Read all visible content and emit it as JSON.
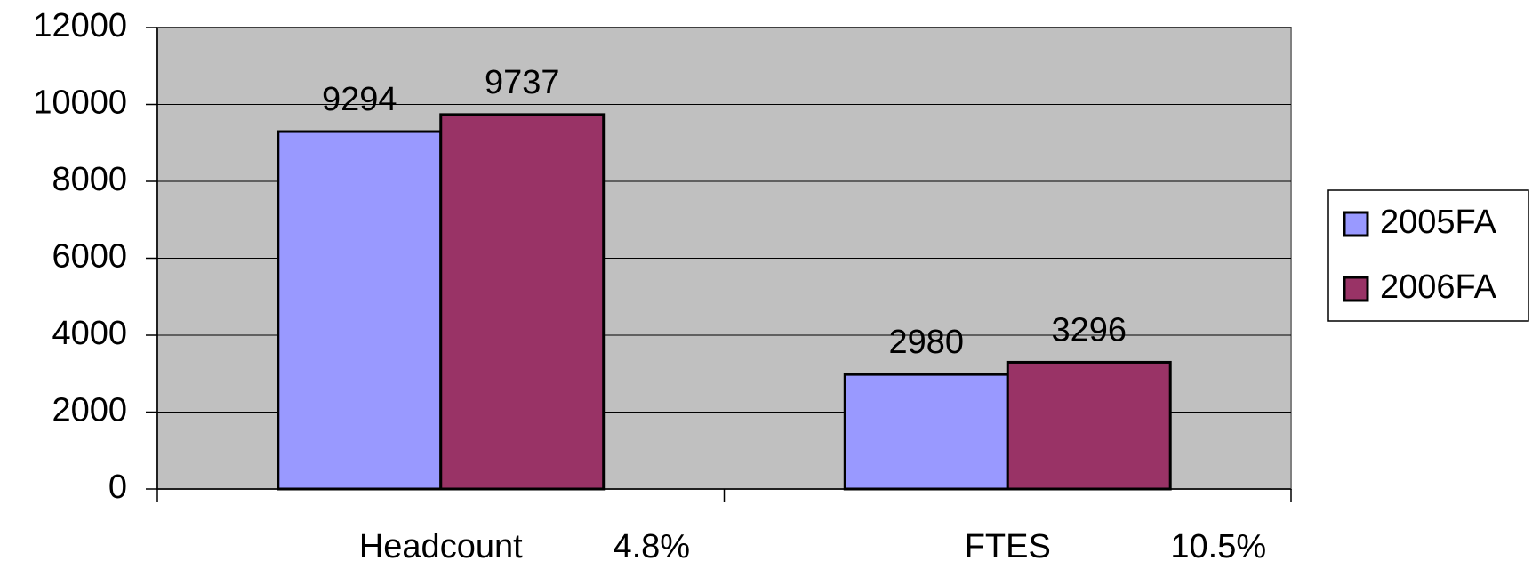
{
  "chart_data": {
    "type": "bar",
    "categories": [
      "Headcount",
      "FTES"
    ],
    "annotations": [
      "4.8%",
      "10.5%"
    ],
    "series": [
      {
        "name": "2005FA",
        "color": "#9999ff",
        "values": [
          9294,
          2980
        ]
      },
      {
        "name": "2006FA",
        "color": "#993366",
        "values": [
          9737,
          3296
        ]
      }
    ],
    "ylim": [
      0,
      12000
    ],
    "yticks": [
      0,
      2000,
      4000,
      6000,
      8000,
      10000,
      12000
    ],
    "grid": true,
    "legend": "right"
  }
}
